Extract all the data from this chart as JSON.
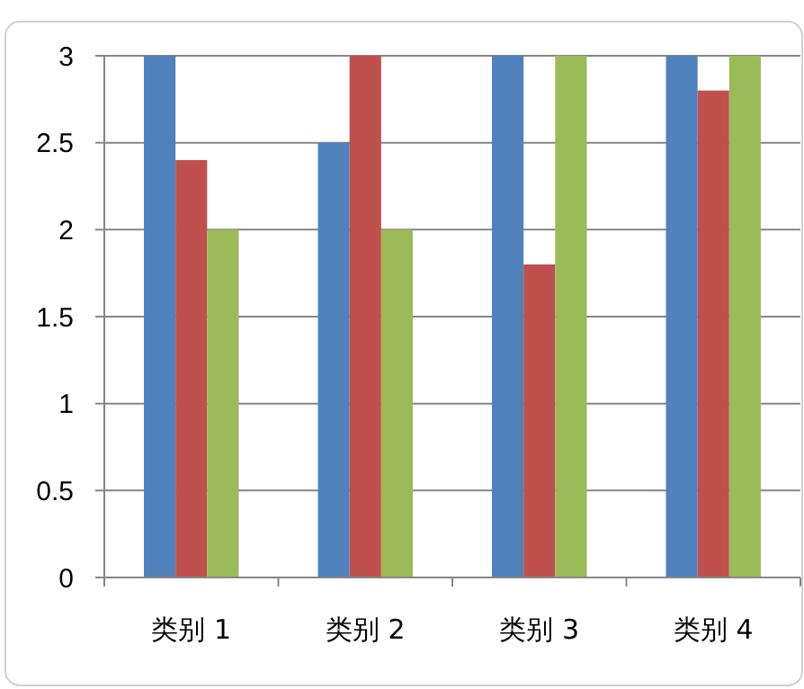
{
  "chart_data": {
    "type": "bar",
    "categories": [
      "类别 1",
      "类别 2",
      "类别 3",
      "类别 4"
    ],
    "series": [
      {
        "color": "#4f81bd",
        "values": [
          3,
          2.5,
          3,
          3
        ]
      },
      {
        "color": "#c0504d",
        "values": [
          2.4,
          3,
          1.8,
          2.8
        ]
      },
      {
        "color": "#9bbb59",
        "values": [
          2,
          2,
          3,
          3
        ]
      }
    ],
    "ylim": [
      0,
      3
    ],
    "yticks": [
      0,
      0.5,
      1,
      1.5,
      2,
      2.5,
      3
    ],
    "grid": "y"
  }
}
